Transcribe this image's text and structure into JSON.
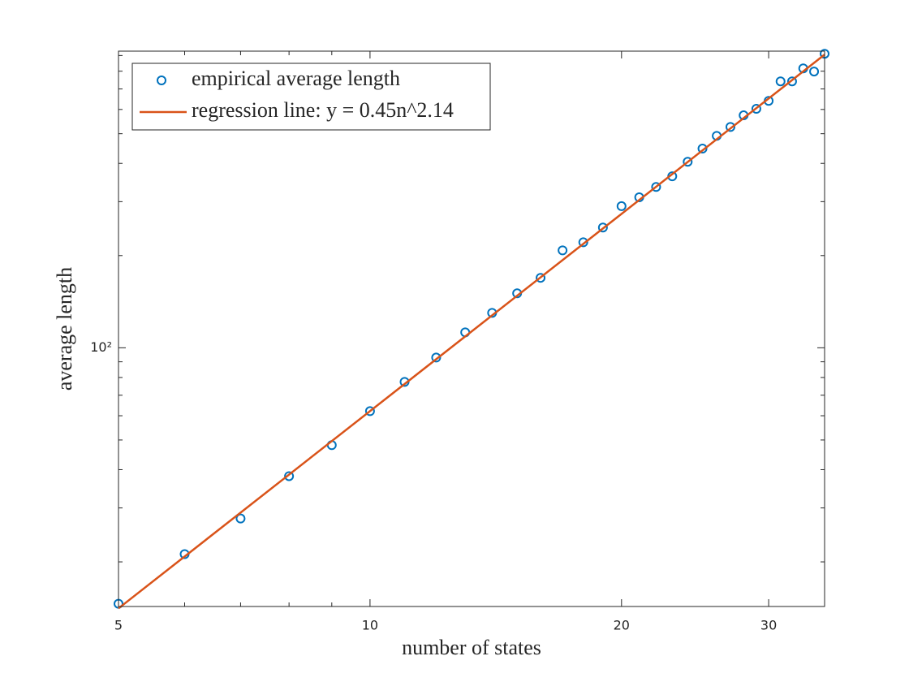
{
  "chart_data": {
    "type": "scatter",
    "xlabel": "number of states",
    "ylabel": "average length",
    "xlog": true,
    "ylog": true,
    "xlim": [
      5,
      35
    ],
    "ylim": [
      14.3,
      930
    ],
    "xticks": [
      5,
      10,
      20,
      30
    ],
    "x_minor_ticks": [
      6,
      7,
      8,
      9
    ],
    "yticks": [
      {
        "value": 100,
        "label": "10²"
      }
    ],
    "y_minor_ticks": [
      20,
      30,
      40,
      50,
      60,
      70,
      80,
      90,
      200,
      300,
      400,
      500,
      600,
      700,
      800,
      900
    ],
    "legend": "upper left",
    "series": [
      {
        "name": "empirical average length",
        "type": "scatter",
        "color": "#0072bd",
        "x": [
          5,
          6,
          7,
          8,
          9,
          10,
          11,
          12,
          13,
          14,
          15,
          16,
          17,
          18,
          19,
          20,
          21,
          22,
          23,
          24,
          25,
          26,
          27,
          28,
          29,
          30,
          31,
          32,
          33,
          34,
          35
        ],
        "values": [
          14.6,
          21.2,
          27.7,
          38.1,
          48.1,
          62.1,
          77.4,
          92.9,
          112.3,
          130,
          150.6,
          169.2,
          208,
          221,
          247,
          290,
          310,
          335,
          363,
          405,
          447,
          492,
          526,
          574,
          603,
          640,
          741,
          741,
          817,
          798,
          912
        ]
      },
      {
        "name": "regression line: y = 0.45n^2.14",
        "type": "line",
        "color": "#d95319",
        "x": [
          5,
          35
        ],
        "values": [
          14.1,
          906
        ]
      }
    ]
  }
}
